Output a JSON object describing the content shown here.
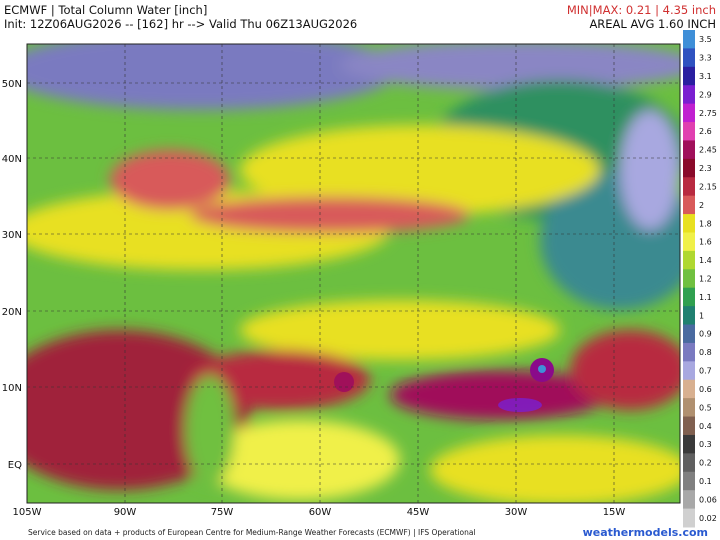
{
  "header": {
    "title": "ECMWF | Total Column Water [inch]",
    "init": "Init: 12Z06AUG2026 -- [162] hr --> Valid Thu 06Z13AUG2026",
    "minmax": "MIN|MAX: 0.21 | 4.35 inch",
    "areal": "AREAL AVG 1.60 INCH"
  },
  "lat_labels": [
    "50N",
    "40N",
    "30N",
    "20N",
    "10N",
    "EQ"
  ],
  "lon_labels": [
    "105W",
    "90W",
    "75W",
    "60W",
    "45W",
    "30W",
    "15W"
  ],
  "colorbar": [
    {
      "label": "3.5",
      "color": "#3f8fd8"
    },
    {
      "label": "3.3",
      "color": "#2f52c0"
    },
    {
      "label": "3.1",
      "color": "#2a1fa0"
    },
    {
      "label": "2.9",
      "color": "#7a1fd0"
    },
    {
      "label": "2.75",
      "color": "#c020d0"
    },
    {
      "label": "2.6",
      "color": "#e040b0"
    },
    {
      "label": "2.45",
      "color": "#a0105a"
    },
    {
      "label": "2.3",
      "color": "#8a0a2a"
    },
    {
      "label": "2.15",
      "color": "#b82a40"
    },
    {
      "label": "2",
      "color": "#d85a5a"
    },
    {
      "label": "1.8",
      "color": "#e8e020"
    },
    {
      "label": "1.6",
      "color": "#f0f048"
    },
    {
      "label": "1.4",
      "color": "#b0d830"
    },
    {
      "label": "1.2",
      "color": "#70c040"
    },
    {
      "label": "1.1",
      "color": "#30a050"
    },
    {
      "label": "1",
      "color": "#208070"
    },
    {
      "label": "0.9",
      "color": "#4a6aa0"
    },
    {
      "label": "0.8",
      "color": "#7a7ac0"
    },
    {
      "label": "0.7",
      "color": "#a8a8e0"
    },
    {
      "label": "0.6",
      "color": "#d8b090"
    },
    {
      "label": "0.5",
      "color": "#b09070"
    },
    {
      "label": "0.4",
      "color": "#806050"
    },
    {
      "label": "0.3",
      "color": "#3a3a3a"
    },
    {
      "label": "0.2",
      "color": "#606060"
    },
    {
      "label": "0.1",
      "color": "#808080"
    },
    {
      "label": "0.06",
      "color": "#a8a8a8"
    },
    {
      "label": "0.02",
      "color": "#d0d0d0"
    }
  ],
  "footer": {
    "credit": "Service based on data + products of European Centre for Medium-Range Weather Forecasts (ECMWF) | IFS Operational",
    "site": "weathermodels.com"
  }
}
